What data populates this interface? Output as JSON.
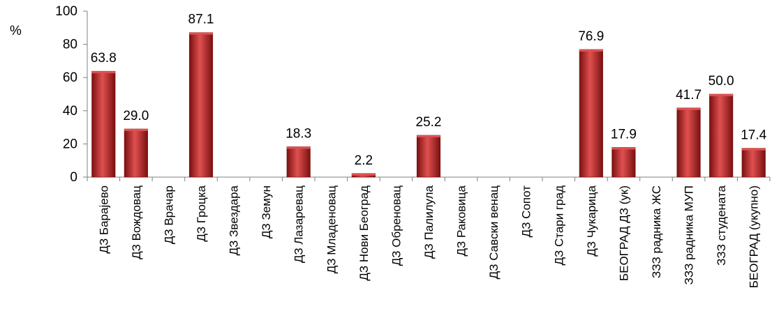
{
  "chart_data": {
    "type": "bar",
    "ylabel": "%",
    "ylim": [
      0,
      100
    ],
    "yticks": [
      0,
      20,
      40,
      60,
      80,
      100
    ],
    "grid": false,
    "colors": {
      "bar_top": "#e05050",
      "bar_mid": "#c0282a",
      "bar_dark": "#7a1010",
      "axis": "#808080"
    },
    "categories": [
      "ДЗ Барајево",
      "ДЗ Вождовац",
      "ДЗ Врачар",
      "ДЗ Гроцка",
      "ДЗ Звездара",
      "ДЗ Земун",
      "ДЗ Лазаревац",
      "ДЗ Младеновац",
      "ДЗ Нови Београд",
      "ДЗ Обреновац",
      "ДЗ Палилула",
      "ДЗ Раковица",
      "ДЗ Савски венац",
      "ДЗ Сопот",
      "ДЗ Стари град",
      "ДЗ Чукарица",
      "БЕОГРАД ДЗ (ук)",
      "ЗЗЗ радника ЖС",
      "ЗЗЗ радника МУП",
      "ЗЗЗ студената",
      "БЕОГРАД (укупно)"
    ],
    "values": [
      63.8,
      29.0,
      null,
      87.1,
      null,
      null,
      18.3,
      null,
      2.2,
      null,
      25.2,
      null,
      null,
      null,
      null,
      76.9,
      17.9,
      null,
      41.7,
      50.0,
      17.4
    ],
    "value_labels": [
      "63.8",
      "29.0",
      "",
      "87.1",
      "",
      "",
      "18.3",
      "",
      "2.2",
      "",
      "25.2",
      "",
      "",
      "",
      "",
      "76.9",
      "17.9",
      "",
      "41.7",
      "50.0",
      "17.4"
    ]
  }
}
